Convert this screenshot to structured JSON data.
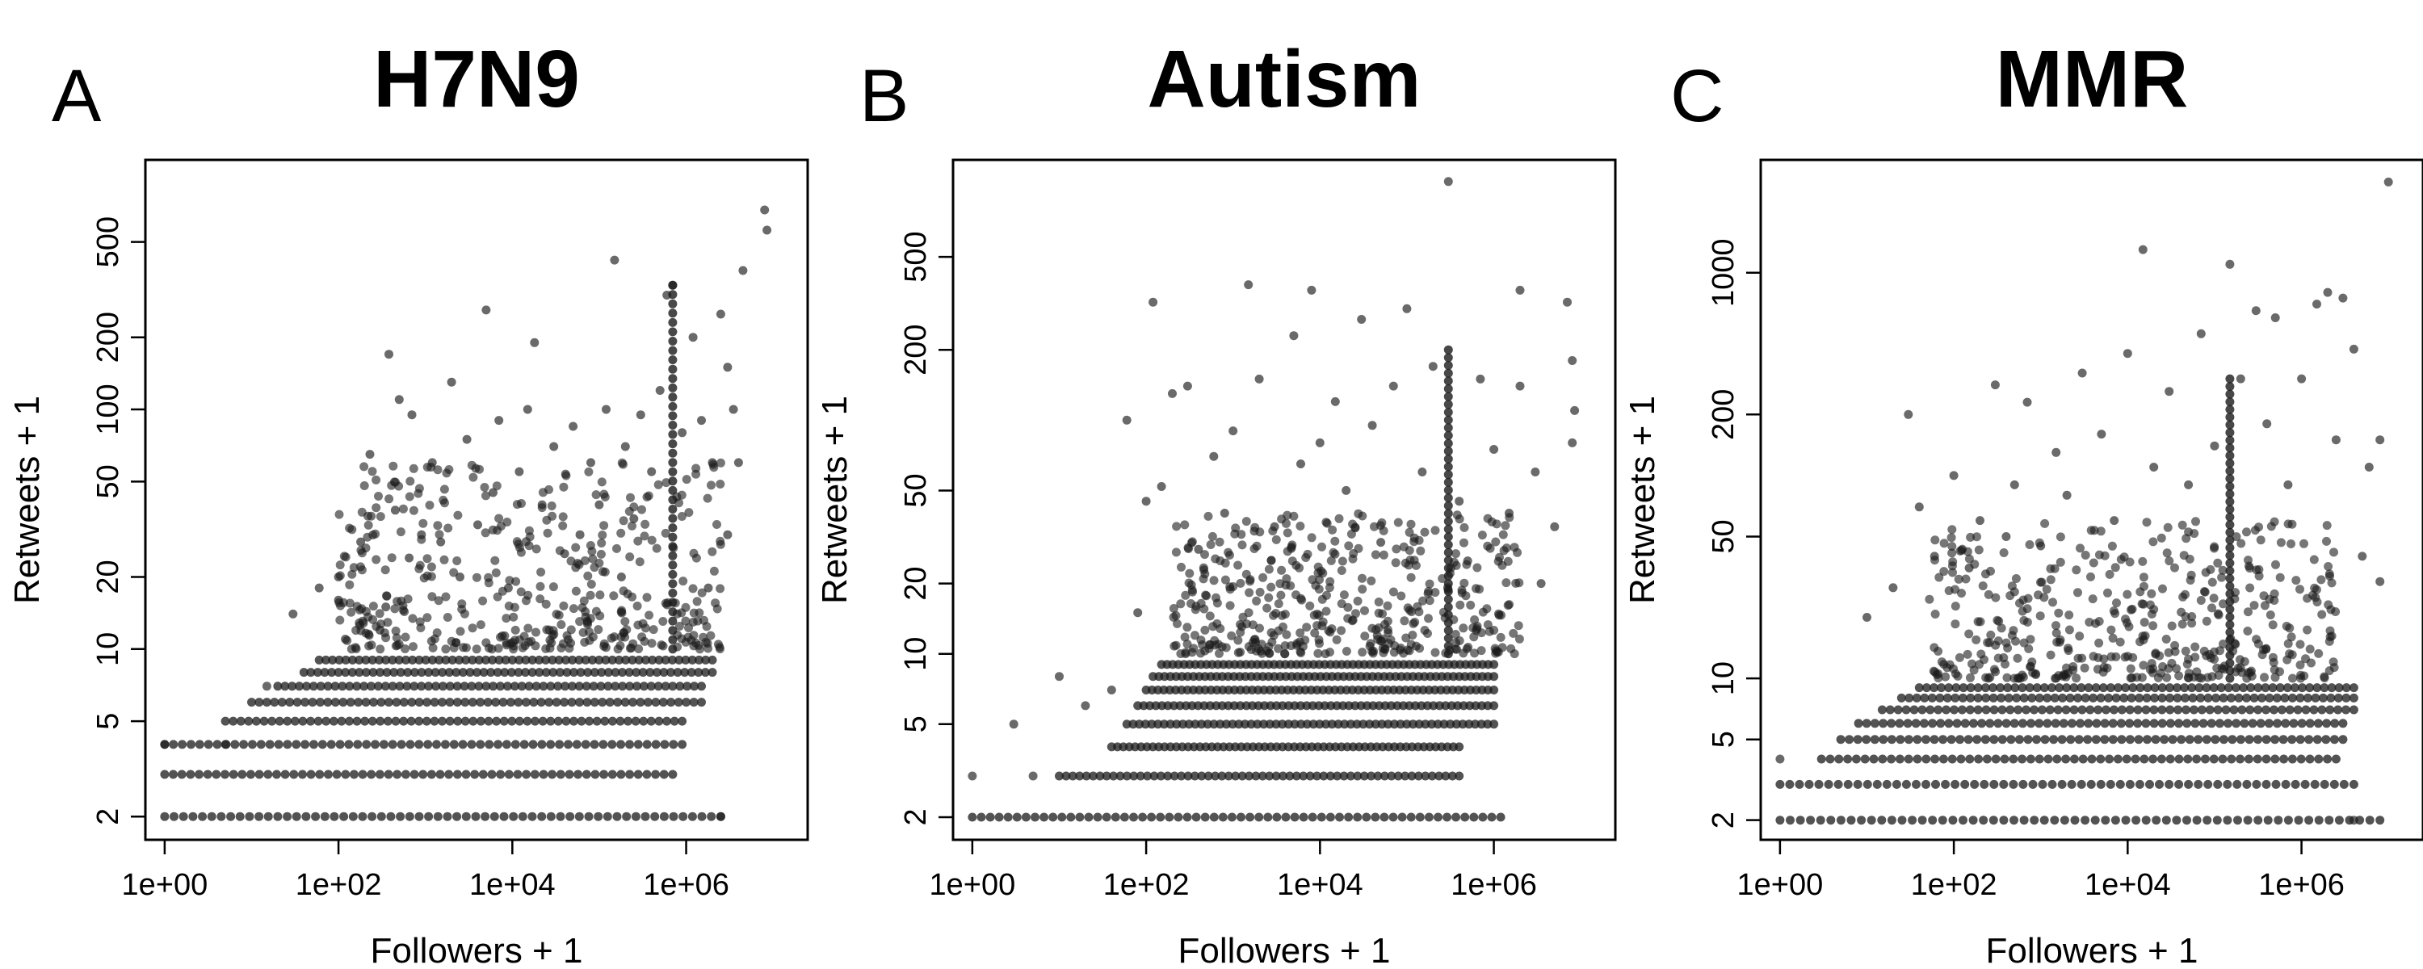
{
  "chart_data": [
    {
      "type": "scatter",
      "panel_label": "A",
      "title": "H7N9",
      "xlabel": "Followers + 1",
      "ylabel": "Retweets + 1",
      "x_scale": "log10",
      "y_scale": "log10",
      "xlim": [
        0.6,
        25000000
      ],
      "ylim": [
        1.6,
        1100
      ],
      "x_ticks": [
        {
          "value": 1,
          "label": "1e+00"
        },
        {
          "value": 100,
          "label": "1e+02"
        },
        {
          "value": 10000,
          "label": "1e+04"
        },
        {
          "value": 1000000,
          "label": "1e+06"
        }
      ],
      "y_ticks": [
        {
          "value": 2,
          "label": "2"
        },
        {
          "value": 5,
          "label": "5"
        },
        {
          "value": 10,
          "label": "10"
        },
        {
          "value": 20,
          "label": "20"
        },
        {
          "value": 50,
          "label": "50"
        },
        {
          "value": 100,
          "label": "100"
        },
        {
          "value": 200,
          "label": "200"
        },
        {
          "value": 500,
          "label": "500"
        }
      ],
      "grid": false,
      "legend": "none",
      "point_color": "#1a1a1a",
      "band_rows": [
        {
          "retweets_plus_1": 2,
          "followers_range": [
            1,
            2500000
          ]
        },
        {
          "retweets_plus_1": 3,
          "followers_range": [
            1,
            700000
          ]
        },
        {
          "retweets_plus_1": 4,
          "followers_range": [
            1,
            900000
          ]
        },
        {
          "retweets_plus_1": 5,
          "followers_range": [
            5,
            900000
          ]
        },
        {
          "retweets_plus_1": 6,
          "followers_range": [
            10,
            1500000
          ]
        },
        {
          "retweets_plus_1": 7,
          "followers_range": [
            20,
            1500000
          ]
        },
        {
          "retweets_plus_1": 8,
          "followers_range": [
            40,
            2000000
          ]
        },
        {
          "retweets_plus_1": 9,
          "followers_range": [
            60,
            2000000
          ]
        }
      ],
      "dense_region": {
        "followers_range": [
          100,
          2500000
        ],
        "retweets_range": [
          10,
          60
        ]
      },
      "tall_column": {
        "followers_plus_1": 700000,
        "retweets_range": [
          10,
          330
        ]
      },
      "points": [
        [
          1,
          4
        ],
        [
          5,
          4
        ],
        [
          15,
          7
        ],
        [
          30,
          14
        ],
        [
          60,
          18
        ],
        [
          100,
          20
        ],
        [
          100,
          16
        ],
        [
          120,
          11
        ],
        [
          180,
          28
        ],
        [
          230,
          65
        ],
        [
          300,
          12
        ],
        [
          350,
          15
        ],
        [
          380,
          170
        ],
        [
          450,
          38
        ],
        [
          500,
          110
        ],
        [
          650,
          24
        ],
        [
          700,
          95
        ],
        [
          900,
          30
        ],
        [
          1200,
          60
        ],
        [
          1500,
          28
        ],
        [
          2000,
          130
        ],
        [
          2500,
          20
        ],
        [
          3000,
          75
        ],
        [
          4000,
          33
        ],
        [
          5000,
          260
        ],
        [
          6000,
          45
        ],
        [
          7000,
          90
        ],
        [
          9000,
          18
        ],
        [
          12000,
          55
        ],
        [
          15000,
          100
        ],
        [
          18000,
          190
        ],
        [
          22000,
          40
        ],
        [
          30000,
          70
        ],
        [
          40000,
          25
        ],
        [
          50000,
          85
        ],
        [
          60000,
          30
        ],
        [
          80000,
          60
        ],
        [
          100000,
          40
        ],
        [
          120000,
          100
        ],
        [
          150000,
          420
        ],
        [
          180000,
          20
        ],
        [
          200000,
          70
        ],
        [
          250000,
          35
        ],
        [
          300000,
          95
        ],
        [
          400000,
          55
        ],
        [
          500000,
          120
        ],
        [
          600000,
          300
        ],
        [
          700000,
          330
        ],
        [
          900000,
          80
        ],
        [
          1200000,
          200
        ],
        [
          1500000,
          90
        ],
        [
          2000000,
          60
        ],
        [
          2500000,
          250
        ],
        [
          3000000,
          150
        ],
        [
          3500000,
          100
        ],
        [
          4000000,
          60
        ],
        [
          4500000,
          380
        ],
        [
          8000000,
          680
        ],
        [
          8500000,
          560
        ],
        [
          2500000,
          2
        ],
        [
          3000000,
          30
        ],
        [
          1800000,
          18
        ]
      ]
    },
    {
      "type": "scatter",
      "panel_label": "B",
      "title": "Autism",
      "xlabel": "Followers + 1",
      "ylabel": "Retweets + 1",
      "x_scale": "log10",
      "y_scale": "log10",
      "xlim": [
        0.6,
        25000000
      ],
      "ylim": [
        1.6,
        1300
      ],
      "x_ticks": [
        {
          "value": 1,
          "label": "1e+00"
        },
        {
          "value": 100,
          "label": "1e+02"
        },
        {
          "value": 10000,
          "label": "1e+04"
        },
        {
          "value": 1000000,
          "label": "1e+06"
        }
      ],
      "y_ticks": [
        {
          "value": 2,
          "label": "2"
        },
        {
          "value": 5,
          "label": "5"
        },
        {
          "value": 10,
          "label": "10"
        },
        {
          "value": 20,
          "label": "20"
        },
        {
          "value": 50,
          "label": "50"
        },
        {
          "value": 200,
          "label": "200"
        },
        {
          "value": 500,
          "label": "500"
        }
      ],
      "grid": false,
      "legend": "none",
      "point_color": "#1a1a1a",
      "band_rows": [
        {
          "retweets_plus_1": 2,
          "followers_range": [
            1,
            1200000
          ]
        },
        {
          "retweets_plus_1": 3,
          "followers_range": [
            10,
            400000
          ]
        },
        {
          "retweets_plus_1": 4,
          "followers_range": [
            40,
            400000
          ]
        },
        {
          "retweets_plus_1": 5,
          "followers_range": [
            60,
            1000000
          ]
        },
        {
          "retweets_plus_1": 6,
          "followers_range": [
            80,
            1000000
          ]
        },
        {
          "retweets_plus_1": 7,
          "followers_range": [
            100,
            1000000
          ]
        },
        {
          "retweets_plus_1": 8,
          "followers_range": [
            120,
            1000000
          ]
        },
        {
          "retweets_plus_1": 9,
          "followers_range": [
            150,
            1000000
          ]
        }
      ],
      "dense_region": {
        "followers_range": [
          200,
          2000000
        ],
        "retweets_range": [
          10,
          40
        ]
      },
      "tall_column": {
        "followers_plus_1": 300000,
        "retweets_range": [
          10,
          200
        ]
      },
      "points": [
        [
          1,
          3
        ],
        [
          3,
          5
        ],
        [
          5,
          3
        ],
        [
          10,
          8
        ],
        [
          20,
          6
        ],
        [
          40,
          7
        ],
        [
          60,
          100
        ],
        [
          80,
          15
        ],
        [
          100,
          45
        ],
        [
          120,
          320
        ],
        [
          150,
          52
        ],
        [
          200,
          130
        ],
        [
          300,
          140
        ],
        [
          400,
          28
        ],
        [
          600,
          70
        ],
        [
          800,
          40
        ],
        [
          1000,
          90
        ],
        [
          1500,
          380
        ],
        [
          2000,
          150
        ],
        [
          3000,
          35
        ],
        [
          5000,
          230
        ],
        [
          6000,
          65
        ],
        [
          8000,
          360
        ],
        [
          10000,
          80
        ],
        [
          15000,
          120
        ],
        [
          20000,
          50
        ],
        [
          30000,
          270
        ],
        [
          40000,
          95
        ],
        [
          50000,
          30
        ],
        [
          70000,
          140
        ],
        [
          100000,
          300
        ],
        [
          150000,
          60
        ],
        [
          200000,
          170
        ],
        [
          300000,
          1050
        ],
        [
          400000,
          45
        ],
        [
          500000,
          25
        ],
        [
          700000,
          150
        ],
        [
          1000000,
          75
        ],
        [
          1500000,
          40
        ],
        [
          2000000,
          360
        ],
        [
          2000000,
          140
        ],
        [
          3000000,
          60
        ],
        [
          3500000,
          20
        ],
        [
          5000000,
          35
        ],
        [
          7000000,
          320
        ],
        [
          8000000,
          180
        ],
        [
          8500000,
          110
        ],
        [
          8000000,
          80
        ]
      ]
    },
    {
      "type": "scatter",
      "panel_label": "C",
      "title": "MMR",
      "xlabel": "Followers + 1",
      "ylabel": "Retweets + 1",
      "x_scale": "log10",
      "y_scale": "log10",
      "xlim": [
        0.6,
        25000000
      ],
      "ylim": [
        1.6,
        3600
      ],
      "x_ticks": [
        {
          "value": 1,
          "label": "1e+00"
        },
        {
          "value": 100,
          "label": "1e+02"
        },
        {
          "value": 10000,
          "label": "1e+04"
        },
        {
          "value": 1000000,
          "label": "1e+06"
        }
      ],
      "y_ticks": [
        {
          "value": 2,
          "label": "2"
        },
        {
          "value": 5,
          "label": "5"
        },
        {
          "value": 10,
          "label": "10"
        },
        {
          "value": 50,
          "label": "50"
        },
        {
          "value": 200,
          "label": "200"
        },
        {
          "value": 1000,
          "label": "1000"
        }
      ],
      "grid": false,
      "legend": "none",
      "point_color": "#1a1a1a",
      "band_rows": [
        {
          "retweets_plus_1": 2,
          "followers_range": [
            1,
            8000000
          ]
        },
        {
          "retweets_plus_1": 3,
          "followers_range": [
            1,
            4000000
          ]
        },
        {
          "retweets_plus_1": 4,
          "followers_range": [
            3,
            2500000
          ]
        },
        {
          "retweets_plus_1": 5,
          "followers_range": [
            5,
            3000000
          ]
        },
        {
          "retweets_plus_1": 6,
          "followers_range": [
            8,
            3000000
          ]
        },
        {
          "retweets_plus_1": 7,
          "followers_range": [
            15,
            4000000
          ]
        },
        {
          "retweets_plus_1": 8,
          "followers_range": [
            25,
            4000000
          ]
        },
        {
          "retweets_plus_1": 9,
          "followers_range": [
            40,
            4000000
          ]
        }
      ],
      "dense_region": {
        "followers_range": [
          50,
          2500000
        ],
        "retweets_range": [
          10,
          60
        ]
      },
      "tall_column": {
        "followers_plus_1": 150000,
        "retweets_range": [
          10,
          300
        ]
      },
      "points": [
        [
          1,
          4
        ],
        [
          10,
          20
        ],
        [
          20,
          28
        ],
        [
          30,
          200
        ],
        [
          40,
          70
        ],
        [
          60,
          40
        ],
        [
          100,
          100
        ],
        [
          150,
          35
        ],
        [
          200,
          60
        ],
        [
          300,
          280
        ],
        [
          400,
          50
        ],
        [
          500,
          90
        ],
        [
          700,
          230
        ],
        [
          1000,
          45
        ],
        [
          1500,
          130
        ],
        [
          2000,
          80
        ],
        [
          3000,
          320
        ],
        [
          5000,
          160
        ],
        [
          7000,
          60
        ],
        [
          10000,
          400
        ],
        [
          15000,
          1300
        ],
        [
          20000,
          110
        ],
        [
          30000,
          260
        ],
        [
          50000,
          90
        ],
        [
          70000,
          500
        ],
        [
          100000,
          140
        ],
        [
          150000,
          1100
        ],
        [
          200000,
          300
        ],
        [
          300000,
          650
        ],
        [
          400000,
          180
        ],
        [
          500000,
          600
        ],
        [
          700000,
          90
        ],
        [
          1000000,
          300
        ],
        [
          1500000,
          700
        ],
        [
          2000000,
          800
        ],
        [
          2500000,
          150
        ],
        [
          3000000,
          750
        ],
        [
          4000000,
          420
        ],
        [
          5000000,
          40
        ],
        [
          6000000,
          110
        ],
        [
          8000000,
          30
        ],
        [
          10000000,
          2800
        ],
        [
          8000000,
          150
        ],
        [
          4000000,
          2
        ]
      ]
    }
  ]
}
